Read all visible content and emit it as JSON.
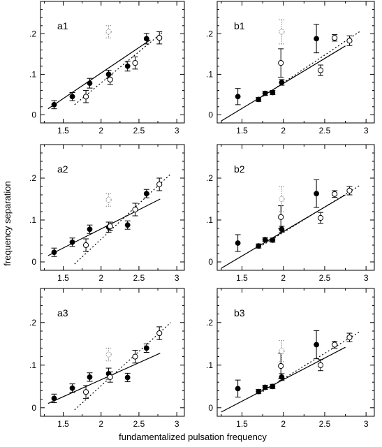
{
  "xlabel": "fundamentalized pulsation frequency",
  "ylabel": "frequency separation",
  "chart_data": [
    {
      "type": "scatter",
      "panel": "a1",
      "xlim": [
        1.2,
        3.1
      ],
      "ylim": [
        -0.02,
        0.28
      ],
      "x_ticks": [
        "1.5",
        "2",
        "2.5",
        "3"
      ],
      "y_ticks": [
        "0",
        ".1",
        ".2"
      ],
      "series": [
        {
          "marker": "filled",
          "points": [
            [
              1.38,
              0.025,
              0.01
            ],
            [
              1.62,
              0.045,
              0.01
            ],
            [
              1.85,
              0.078,
              0.012
            ],
            [
              2.1,
              0.1,
              0.01
            ],
            [
              2.35,
              0.12,
              0.012
            ],
            [
              2.6,
              0.188,
              0.013
            ]
          ]
        },
        {
          "marker": "open",
          "points": [
            [
              1.8,
              0.045,
              0.015
            ],
            [
              2.12,
              0.087,
              0.012
            ],
            [
              2.45,
              0.128,
              0.015
            ],
            [
              2.77,
              0.19,
              0.015
            ]
          ]
        },
        {
          "marker": "dotted",
          "points": [
            [
              2.1,
              0.205,
              0.015
            ]
          ]
        }
      ],
      "fit_solid": [
        [
          1.3,
          0.015
        ],
        [
          2.65,
          0.185
        ]
      ],
      "fit_dotted": [
        [
          1.65,
          0.025
        ],
        [
          2.82,
          0.205
        ]
      ]
    },
    {
      "type": "scatter",
      "panel": "b1",
      "xlim": [
        1.2,
        3.1
      ],
      "ylim": [
        -0.02,
        0.28
      ],
      "x_ticks": [
        "1.5",
        "2",
        "2.5",
        "3"
      ],
      "y_ticks": [
        "0",
        ".1",
        ".2"
      ],
      "series": [
        {
          "marker": "filled",
          "points": [
            [
              1.45,
              0.045,
              0.02
            ],
            [
              1.7,
              0.038,
              0.005
            ],
            [
              1.78,
              0.053,
              0.005
            ],
            [
              1.87,
              0.055,
              0.005
            ],
            [
              1.98,
              0.08,
              0.007
            ],
            [
              2.4,
              0.188,
              0.035
            ]
          ]
        },
        {
          "marker": "open",
          "points": [
            [
              1.97,
              0.128,
              0.035
            ],
            [
              2.45,
              0.11,
              0.013
            ],
            [
              2.62,
              0.19,
              0.008
            ],
            [
              2.8,
              0.183,
              0.012
            ]
          ]
        },
        {
          "marker": "dotted",
          "points": [
            [
              1.98,
              0.205,
              0.03
            ]
          ]
        }
      ],
      "fit_solid": [
        [
          1.25,
          -0.015
        ],
        [
          2.75,
          0.17
        ]
      ],
      "fit_dotted": [
        [
          1.75,
          0.045
        ],
        [
          2.92,
          0.205
        ]
      ]
    },
    {
      "type": "scatter",
      "panel": "a2",
      "xlim": [
        1.2,
        3.1
      ],
      "ylim": [
        -0.02,
        0.28
      ],
      "x_ticks": [
        "1.5",
        "2",
        "2.5",
        "3"
      ],
      "y_ticks": [
        "0",
        ".1",
        ".2"
      ],
      "series": [
        {
          "marker": "filled",
          "points": [
            [
              1.38,
              0.023,
              0.01
            ],
            [
              1.62,
              0.047,
              0.01
            ],
            [
              1.85,
              0.078,
              0.01
            ],
            [
              2.1,
              0.083,
              0.012
            ],
            [
              2.35,
              0.088,
              0.01
            ],
            [
              2.6,
              0.163,
              0.01
            ]
          ]
        },
        {
          "marker": "open",
          "points": [
            [
              1.8,
              0.04,
              0.015
            ],
            [
              2.12,
              0.085,
              0.01
            ],
            [
              2.45,
              0.125,
              0.015
            ],
            [
              2.77,
              0.185,
              0.015
            ]
          ]
        },
        {
          "marker": "dotted",
          "points": [
            [
              2.1,
              0.148,
              0.015
            ]
          ]
        }
      ],
      "fit_solid": [
        [
          1.3,
          0.015
        ],
        [
          2.78,
          0.15
        ]
      ],
      "fit_dotted": [
        [
          1.65,
          -0.005
        ],
        [
          2.92,
          0.21
        ]
      ]
    },
    {
      "type": "scatter",
      "panel": "b2",
      "xlim": [
        1.2,
        3.1
      ],
      "ylim": [
        -0.02,
        0.28
      ],
      "x_ticks": [
        "1.5",
        "2",
        "2.5",
        "3"
      ],
      "y_ticks": [
        "0",
        ".1",
        ".2"
      ],
      "series": [
        {
          "marker": "filled",
          "points": [
            [
              1.45,
              0.045,
              0.02
            ],
            [
              1.7,
              0.038,
              0.005
            ],
            [
              1.78,
              0.053,
              0.005
            ],
            [
              1.87,
              0.052,
              0.005
            ],
            [
              1.98,
              0.078,
              0.007
            ],
            [
              2.4,
              0.163,
              0.033
            ]
          ]
        },
        {
          "marker": "open",
          "points": [
            [
              1.97,
              0.107,
              0.027
            ],
            [
              2.45,
              0.105,
              0.013
            ],
            [
              2.62,
              0.162,
              0.008
            ],
            [
              2.8,
              0.17,
              0.01
            ]
          ]
        },
        {
          "marker": "dotted",
          "points": [
            [
              1.98,
              0.15,
              0.03
            ]
          ]
        }
      ],
      "fit_solid": [
        [
          1.25,
          -0.015
        ],
        [
          2.75,
          0.16
        ]
      ],
      "fit_dotted": [
        [
          1.75,
          0.04
        ],
        [
          2.92,
          0.182
        ]
      ]
    },
    {
      "type": "scatter",
      "panel": "a3",
      "xlim": [
        1.2,
        3.1
      ],
      "ylim": [
        -0.02,
        0.28
      ],
      "x_ticks": [
        "1.5",
        "2",
        "2.5",
        "3"
      ],
      "y_ticks": [
        "0",
        ".1",
        ".2"
      ],
      "series": [
        {
          "marker": "filled",
          "points": [
            [
              1.38,
              0.022,
              0.01
            ],
            [
              1.62,
              0.046,
              0.01
            ],
            [
              1.85,
              0.072,
              0.01
            ],
            [
              2.1,
              0.08,
              0.013
            ],
            [
              2.35,
              0.071,
              0.01
            ],
            [
              2.6,
              0.14,
              0.01
            ]
          ]
        },
        {
          "marker": "open",
          "points": [
            [
              1.8,
              0.037,
              0.015
            ],
            [
              2.12,
              0.072,
              0.012
            ],
            [
              2.45,
              0.12,
              0.015
            ],
            [
              2.77,
              0.175,
              0.015
            ]
          ]
        },
        {
          "marker": "dotted",
          "points": [
            [
              2.1,
              0.125,
              0.015
            ]
          ]
        }
      ],
      "fit_solid": [
        [
          1.3,
          0.01
        ],
        [
          2.78,
          0.128
        ]
      ],
      "fit_dotted": [
        [
          1.65,
          -0.005
        ],
        [
          2.92,
          0.2
        ]
      ]
    },
    {
      "type": "scatter",
      "panel": "b3",
      "xlim": [
        1.2,
        3.1
      ],
      "ylim": [
        -0.02,
        0.28
      ],
      "x_ticks": [
        "1.5",
        "2",
        "2.5",
        "3"
      ],
      "y_ticks": [
        "0",
        ".1",
        ".2"
      ],
      "series": [
        {
          "marker": "filled",
          "points": [
            [
              1.45,
              0.045,
              0.02
            ],
            [
              1.7,
              0.038,
              0.005
            ],
            [
              1.78,
              0.048,
              0.005
            ],
            [
              1.87,
              0.05,
              0.005
            ],
            [
              1.98,
              0.072,
              0.008
            ],
            [
              2.4,
              0.148,
              0.033
            ]
          ]
        },
        {
          "marker": "open",
          "points": [
            [
              1.97,
              0.098,
              0.03
            ],
            [
              2.45,
              0.1,
              0.013
            ],
            [
              2.62,
              0.148,
              0.008
            ],
            [
              2.8,
              0.165,
              0.01
            ]
          ]
        },
        {
          "marker": "dotted",
          "points": [
            [
              1.98,
              0.133,
              0.025
            ]
          ]
        }
      ],
      "fit_solid": [
        [
          1.25,
          -0.01
        ],
        [
          2.75,
          0.142
        ]
      ],
      "fit_dotted": [
        [
          1.75,
          0.038
        ],
        [
          2.92,
          0.178
        ]
      ]
    }
  ]
}
